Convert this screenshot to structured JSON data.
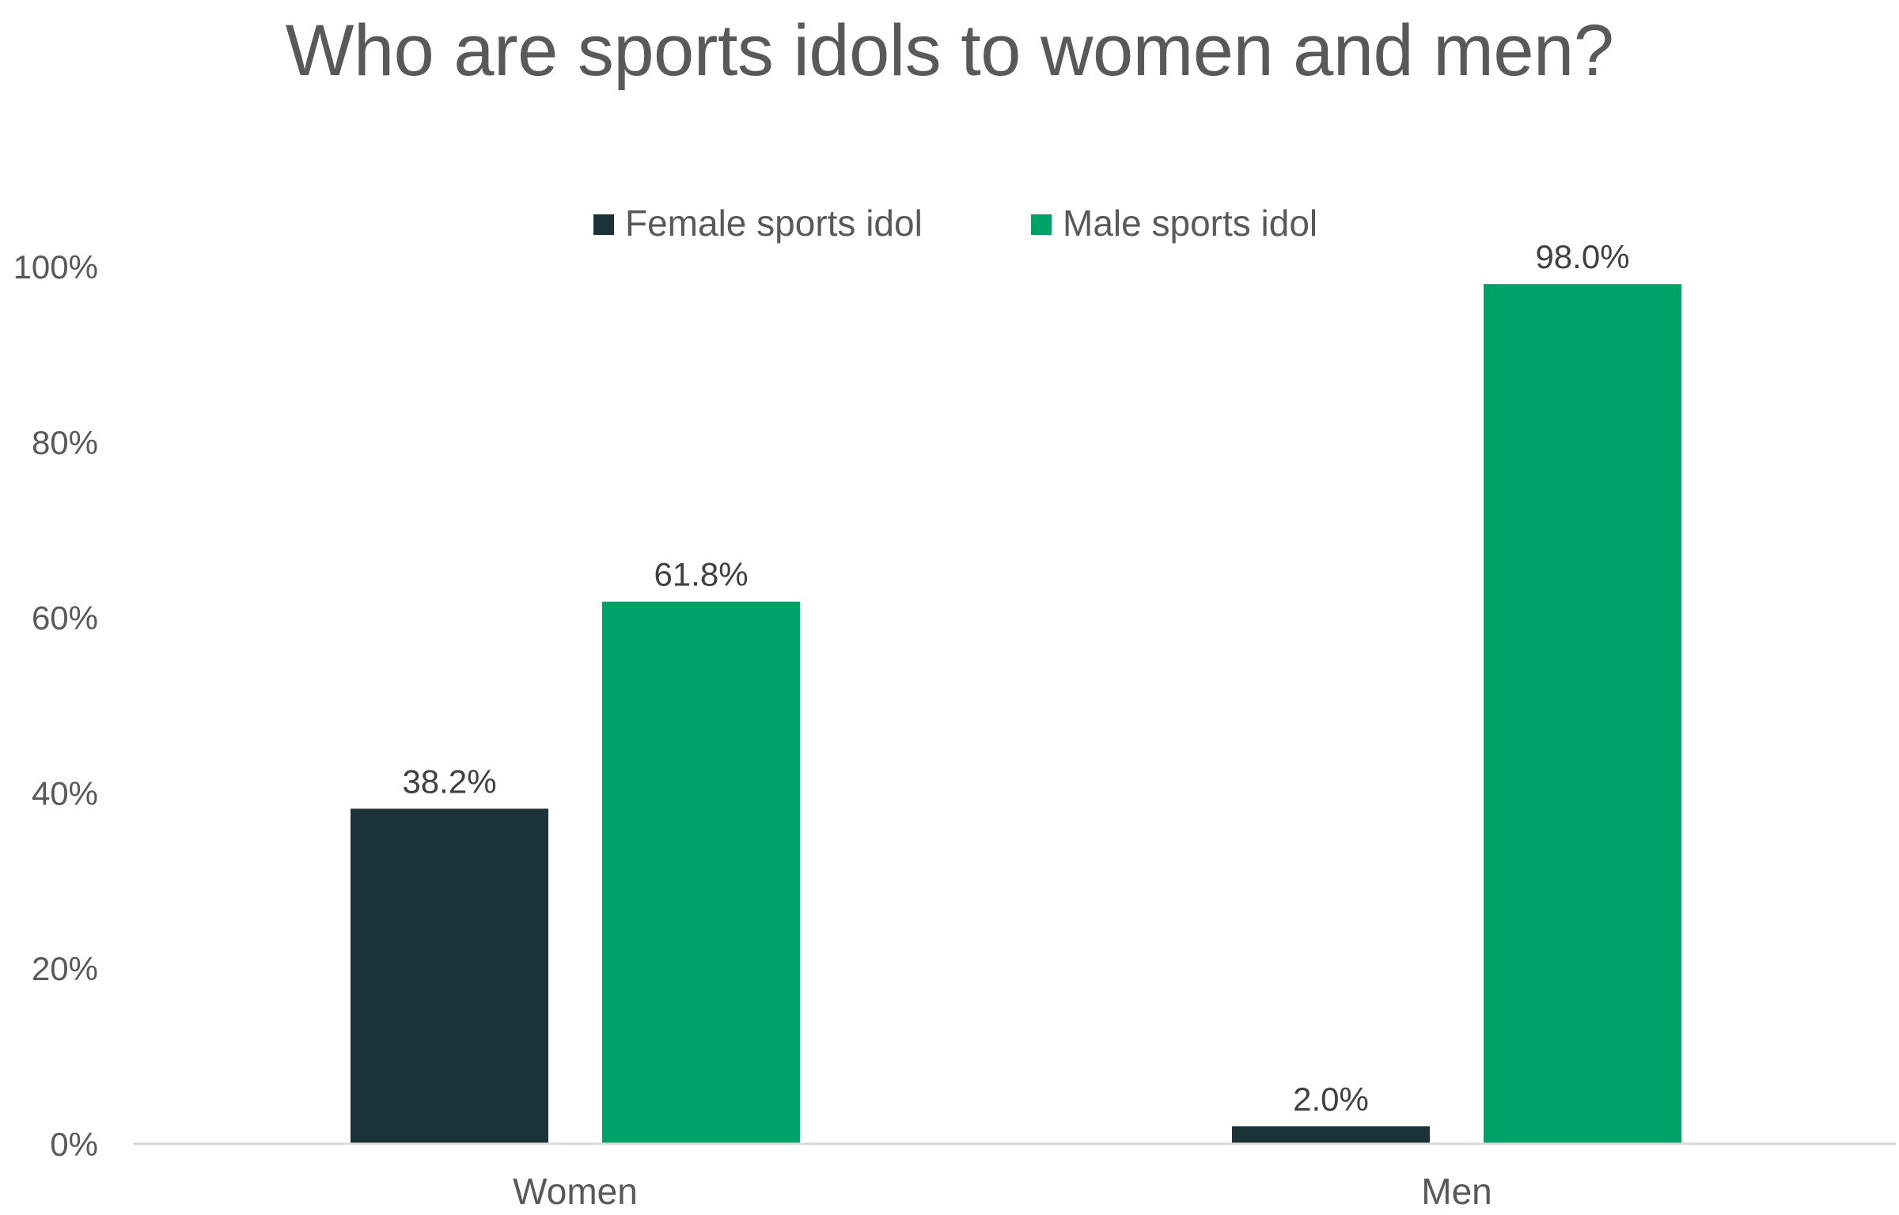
{
  "chart_data": {
    "type": "bar",
    "title": "Who are sports idols to women and men?",
    "categories": [
      "Women",
      "Men"
    ],
    "series": [
      {
        "name": "Female sports idol",
        "values": [
          38.2,
          2.0
        ],
        "labels": [
          "38.2%",
          "2.0%"
        ],
        "color": "#1c3239"
      },
      {
        "name": "Male sports idol",
        "values": [
          61.8,
          98.0
        ],
        "labels": [
          "61.8%",
          "98.0%"
        ],
        "color": "#00a367"
      }
    ],
    "yticks": [
      "0%",
      "20%",
      "40%",
      "60%",
      "80%",
      "100%"
    ],
    "ylim": [
      0,
      100
    ],
    "grid": false,
    "legend_position": "top-center",
    "xlabel": "",
    "ylabel": ""
  }
}
